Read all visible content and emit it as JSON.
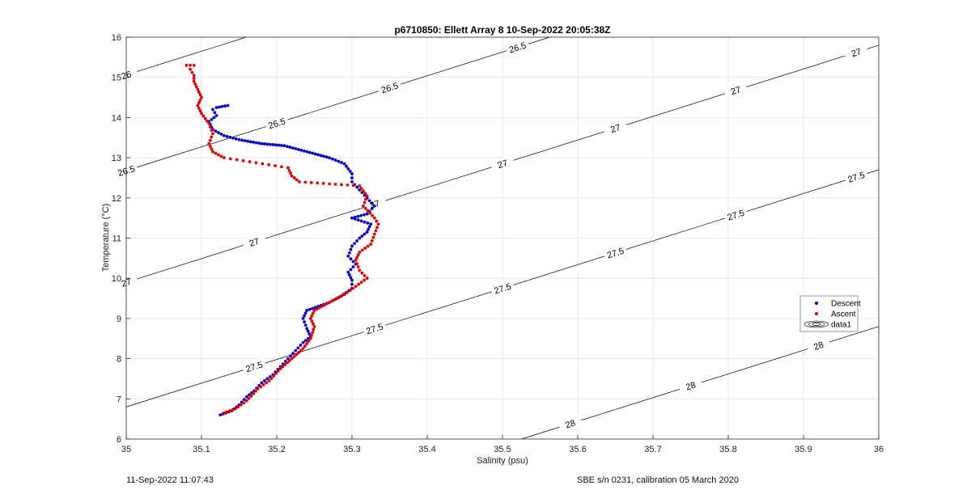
{
  "chart_data": {
    "type": "scatter",
    "title": "p6710850: Ellett Array 8 10-Sep-2022 20:05:38Z",
    "xlabel": "Salinity (psu)",
    "ylabel": "Temperature (°C)",
    "xlim": [
      35,
      36
    ],
    "ylim": [
      6,
      16
    ],
    "xticks": [
      "35",
      "35.1",
      "35.2",
      "35.3",
      "35.4",
      "35.5",
      "35.6",
      "35.7",
      "35.8",
      "35.9",
      "36"
    ],
    "yticks": [
      "6",
      "7",
      "8",
      "9",
      "10",
      "11",
      "12",
      "13",
      "14",
      "15",
      "16"
    ],
    "grid": true,
    "legend_position": "right",
    "legend": [
      "Descent",
      "Ascent",
      "data1"
    ],
    "series": [
      {
        "name": "Descent",
        "color": "#0000cc",
        "points": [
          [
            35.125,
            6.6
          ],
          [
            35.14,
            6.7
          ],
          [
            35.15,
            6.85
          ],
          [
            35.16,
            7.05
          ],
          [
            35.17,
            7.2
          ],
          [
            35.18,
            7.4
          ],
          [
            35.195,
            7.6
          ],
          [
            35.205,
            7.8
          ],
          [
            35.215,
            8.0
          ],
          [
            35.225,
            8.2
          ],
          [
            35.235,
            8.4
          ],
          [
            35.245,
            8.55
          ],
          [
            35.24,
            8.75
          ],
          [
            35.235,
            9.0
          ],
          [
            35.24,
            9.2
          ],
          [
            35.255,
            9.3
          ],
          [
            35.27,
            9.4
          ],
          [
            35.285,
            9.55
          ],
          [
            35.3,
            9.75
          ],
          [
            35.3,
            9.95
          ],
          [
            35.295,
            10.15
          ],
          [
            35.305,
            10.35
          ],
          [
            35.295,
            10.55
          ],
          [
            35.3,
            10.8
          ],
          [
            35.31,
            11.0
          ],
          [
            35.32,
            11.15
          ],
          [
            35.325,
            11.35
          ],
          [
            35.3,
            11.5
          ],
          [
            35.32,
            11.6
          ],
          [
            35.33,
            11.8
          ],
          [
            35.32,
            12.0
          ],
          [
            35.31,
            12.2
          ],
          [
            35.3,
            12.4
          ],
          [
            35.3,
            12.6
          ],
          [
            35.29,
            12.85
          ],
          [
            35.27,
            13.0
          ],
          [
            35.24,
            13.15
          ],
          [
            35.21,
            13.3
          ],
          [
            35.18,
            13.35
          ],
          [
            35.15,
            13.45
          ],
          [
            35.13,
            13.55
          ],
          [
            35.115,
            13.7
          ],
          [
            35.11,
            13.9
          ],
          [
            35.12,
            14.05
          ],
          [
            35.115,
            14.2
          ],
          [
            35.12,
            14.25
          ],
          [
            35.135,
            14.3
          ]
        ]
      },
      {
        "name": "Ascent",
        "color": "#dd0000",
        "points": [
          [
            35.13,
            6.65
          ],
          [
            35.145,
            6.75
          ],
          [
            35.16,
            6.95
          ],
          [
            35.175,
            7.25
          ],
          [
            35.19,
            7.45
          ],
          [
            35.205,
            7.75
          ],
          [
            35.22,
            8.0
          ],
          [
            35.235,
            8.25
          ],
          [
            35.245,
            8.5
          ],
          [
            35.25,
            8.8
          ],
          [
            35.245,
            9.0
          ],
          [
            35.25,
            9.2
          ],
          [
            35.27,
            9.4
          ],
          [
            35.29,
            9.6
          ],
          [
            35.305,
            9.8
          ],
          [
            35.32,
            10.0
          ],
          [
            35.31,
            10.2
          ],
          [
            35.305,
            10.45
          ],
          [
            35.31,
            10.65
          ],
          [
            35.325,
            10.85
          ],
          [
            35.33,
            11.1
          ],
          [
            35.335,
            11.35
          ],
          [
            35.33,
            11.5
          ],
          [
            35.315,
            11.8
          ],
          [
            35.32,
            12.05
          ],
          [
            35.31,
            12.3
          ],
          [
            35.23,
            12.4
          ],
          [
            35.22,
            12.55
          ],
          [
            35.215,
            12.75
          ],
          [
            35.13,
            13.0
          ],
          [
            35.115,
            13.15
          ],
          [
            35.11,
            13.35
          ],
          [
            35.115,
            13.6
          ],
          [
            35.11,
            13.85
          ],
          [
            35.1,
            14.1
          ],
          [
            35.095,
            14.3
          ],
          [
            35.1,
            14.5
          ],
          [
            35.095,
            14.7
          ],
          [
            35.09,
            14.9
          ],
          [
            35.09,
            15.05
          ],
          [
            35.085,
            15.2
          ],
          [
            35.08,
            15.3
          ],
          [
            35.09,
            15.3
          ]
        ]
      }
    ],
    "contours": [
      {
        "label": "26",
        "labels_at_s": [
          35.0,
          35.25
        ]
      },
      {
        "label": "26.5",
        "labels_at_s": [
          35.0,
          35.2,
          35.35,
          35.52,
          35.68,
          35.85
        ]
      },
      {
        "label": "27",
        "labels_at_s": [
          35.0,
          35.17,
          35.33,
          35.5,
          35.65,
          35.81,
          35.97
        ]
      },
      {
        "label": "27.5",
        "labels_at_s": [
          35.17,
          35.33,
          35.5,
          35.65,
          35.81,
          35.97
        ]
      },
      {
        "label": "28",
        "labels_at_s": [
          35.59,
          35.75,
          35.92
        ]
      }
    ]
  },
  "footer": {
    "left": "11-Sep-2022 11:07:43",
    "right": "SBE s/n 0231, calibration 05 March 2020"
  }
}
